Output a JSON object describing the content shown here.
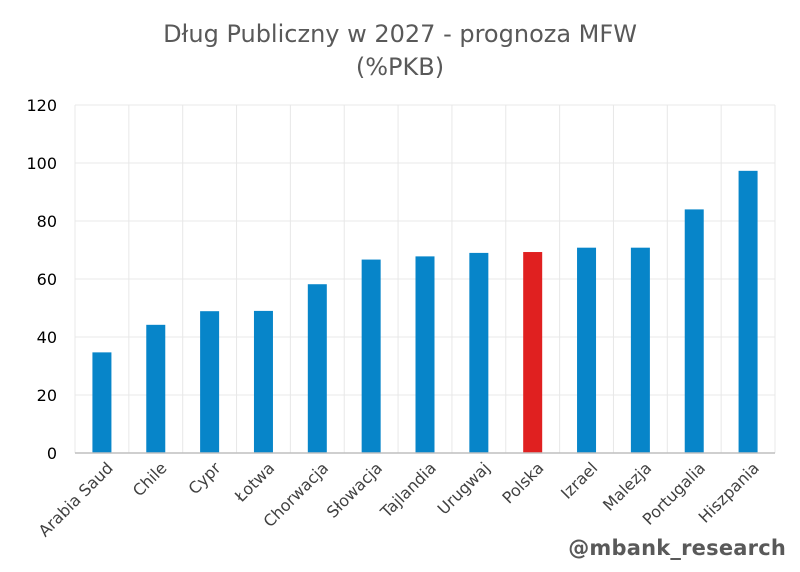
{
  "title_line1": "Dług Publiczny w 2027 - prognoza MFW",
  "title_line2": "(%PKB)",
  "watermark": "@mbank_research",
  "colors": {
    "bar": "#0785C9",
    "highlight": "#E02020",
    "grid": "#e8e8e8",
    "axis": "#bfbfbf",
    "text": "#404040"
  },
  "chart_data": {
    "type": "bar",
    "title": "Dług Publiczny w 2027 - prognoza MFW (%PKB)",
    "categories": [
      "Arabia Saud",
      "Chile",
      "Cypr",
      "Łotwa",
      "Chorwacja",
      "Słowacja",
      "Tajlandia",
      "Urugwaj",
      "Polska",
      "Izrael",
      "Malezja",
      "Portugalia",
      "Hiszpania"
    ],
    "values": [
      34.7,
      44.2,
      48.9,
      49.0,
      58.2,
      66.7,
      67.8,
      69.0,
      69.3,
      70.8,
      70.8,
      84.0,
      97.3
    ],
    "highlight_category": "Polska",
    "ylim": [
      0,
      120
    ],
    "yticks": [
      0,
      20,
      40,
      60,
      80,
      100,
      120
    ],
    "grid": true,
    "xlabel": "",
    "ylabel": ""
  }
}
